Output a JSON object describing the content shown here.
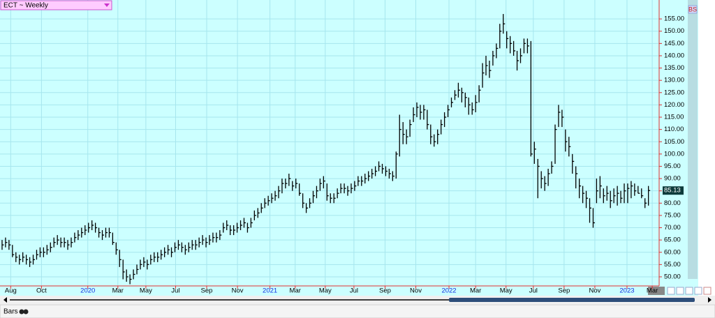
{
  "chart_data": {
    "type": "ohlc",
    "title": "ECT ~ Weekly",
    "color": "#000000",
    "grid": true,
    "high": [
      65,
      66,
      65,
      63,
      60,
      59,
      60,
      59,
      58,
      59,
      61,
      62,
      62,
      63,
      64,
      66,
      67,
      66,
      66,
      65,
      66,
      68,
      69,
      70,
      71,
      72,
      73,
      72,
      70,
      69,
      70,
      70,
      68,
      64,
      61,
      57,
      53,
      51,
      53,
      55,
      57,
      58,
      57,
      59,
      60,
      60,
      61,
      62,
      63,
      62,
      64,
      65,
      64,
      63,
      64,
      65,
      65,
      66,
      67,
      66,
      67,
      68,
      68,
      69,
      72,
      73,
      71,
      71,
      72,
      73,
      74,
      72,
      74,
      77,
      78,
      80,
      82,
      83,
      84,
      85,
      87,
      90,
      90,
      92,
      89,
      90,
      88,
      84,
      80,
      82,
      85,
      87,
      90,
      91,
      88,
      84,
      84,
      86,
      88,
      88,
      87,
      88,
      89,
      91,
      91,
      92,
      93,
      94,
      95,
      97,
      96,
      95,
      94,
      93,
      101,
      116,
      113,
      110,
      114,
      119,
      121,
      120,
      120,
      118,
      112,
      108,
      110,
      114,
      117,
      120,
      123,
      126,
      129,
      127,
      125,
      123,
      121,
      124,
      128,
      137,
      140,
      138,
      142,
      145,
      153,
      157,
      150,
      148,
      146,
      142,
      143,
      147,
      147,
      146,
      105,
      98,
      93,
      91,
      94,
      97,
      112,
      120,
      118,
      110,
      107,
      100,
      95,
      90,
      87,
      85,
      82,
      78,
      90,
      91,
      86,
      87,
      85,
      86,
      87,
      85,
      88,
      88,
      89,
      88,
      87,
      86,
      82,
      87
    ],
    "low": [
      61,
      62,
      61,
      58,
      56,
      55,
      56,
      55,
      54,
      55,
      57,
      58,
      58,
      59,
      60,
      62,
      63,
      62,
      62,
      61,
      62,
      64,
      65,
      66,
      67,
      68,
      69,
      68,
      66,
      65,
      66,
      66,
      63,
      59,
      54,
      49,
      48,
      47,
      49,
      51,
      53,
      54,
      53,
      55,
      56,
      56,
      57,
      58,
      59,
      58,
      60,
      61,
      60,
      59,
      60,
      61,
      61,
      62,
      63,
      62,
      63,
      64,
      64,
      65,
      68,
      69,
      67,
      67,
      68,
      69,
      70,
      68,
      70,
      73,
      74,
      76,
      78,
      79,
      80,
      81,
      82,
      84,
      86,
      87,
      85,
      86,
      83,
      78,
      76,
      78,
      80,
      82,
      85,
      86,
      81,
      80,
      80,
      82,
      84,
      84,
      83,
      84,
      85,
      87,
      87,
      88,
      89,
      90,
      91,
      93,
      92,
      91,
      90,
      89,
      90,
      99,
      104,
      104,
      107,
      113,
      115,
      114,
      114,
      110,
      104,
      103,
      104,
      108,
      111,
      115,
      119,
      122,
      123,
      121,
      119,
      116,
      116,
      117,
      121,
      127,
      132,
      131,
      136,
      139,
      143,
      149,
      143,
      141,
      140,
      134,
      137,
      141,
      141,
      99,
      96,
      82,
      86,
      85,
      87,
      92,
      96,
      111,
      111,
      101,
      99,
      92,
      86,
      82,
      80,
      78,
      72,
      70,
      80,
      82,
      80,
      81,
      78,
      80,
      79,
      80,
      80,
      80,
      82,
      83,
      84,
      82,
      78,
      79
    ],
    "close": [
      63,
      64,
      63,
      59,
      58,
      57,
      58,
      57,
      56,
      57,
      59,
      60,
      60,
      61,
      62,
      64,
      65,
      64,
      64,
      63,
      64,
      66,
      67,
      68,
      69,
      70,
      71,
      70,
      68,
      67,
      68,
      68,
      64,
      61,
      57,
      52,
      50,
      49,
      51,
      53,
      55,
      56,
      55,
      57,
      58,
      58,
      59,
      60,
      61,
      60,
      62,
      63,
      62,
      61,
      62,
      63,
      63,
      64,
      65,
      64,
      65,
      66,
      66,
      67,
      70,
      71,
      69,
      69,
      70,
      71,
      72,
      70,
      72,
      75,
      76,
      78,
      80,
      81,
      82,
      83,
      85,
      88,
      88,
      90,
      87,
      88,
      84,
      80,
      78,
      80,
      83,
      85,
      88,
      89,
      83,
      82,
      82,
      84,
      86,
      86,
      85,
      86,
      87,
      89,
      89,
      90,
      91,
      92,
      93,
      95,
      94,
      93,
      92,
      91,
      100,
      110,
      108,
      107,
      112,
      116,
      119,
      117,
      118,
      112,
      107,
      105,
      108,
      112,
      115,
      118,
      121,
      124,
      126,
      125,
      123,
      120,
      118,
      121,
      126,
      133,
      136,
      134,
      140,
      143,
      150,
      153,
      147,
      145,
      142,
      138,
      140,
      145,
      144,
      100,
      102,
      95,
      90,
      88,
      92,
      95,
      110,
      117,
      115,
      105,
      103,
      97,
      92,
      87,
      84,
      82,
      78,
      72,
      85,
      87,
      83,
      84,
      81,
      83,
      84,
      82,
      85,
      86,
      87,
      85,
      84,
      83,
      80,
      85.13
    ],
    "ylim": [
      46.3,
      162.7
    ],
    "yticks": [
      {
        "value": 50,
        "label": "50.00"
      },
      {
        "value": 55,
        "label": "55.00"
      },
      {
        "value": 60,
        "label": "60.00"
      },
      {
        "value": 65,
        "label": "65.00"
      },
      {
        "value": 70,
        "label": "70.00"
      },
      {
        "value": 75,
        "label": "75.00"
      },
      {
        "value": 80,
        "label": "80.00"
      },
      {
        "value": 85,
        "label": "85.00"
      },
      {
        "value": 90,
        "label": "90.00"
      },
      {
        "value": 95,
        "label": "95.00"
      },
      {
        "value": 100,
        "label": "100.00"
      },
      {
        "value": 105,
        "label": "105.00"
      },
      {
        "value": 110,
        "label": "110.00"
      },
      {
        "value": 115,
        "label": "115.00"
      },
      {
        "value": 120,
        "label": "120.00"
      },
      {
        "value": 125,
        "label": "125.00"
      },
      {
        "value": 130,
        "label": "130.00"
      },
      {
        "value": 135,
        "label": "135.00"
      },
      {
        "value": 140,
        "label": "140.00"
      },
      {
        "value": 145,
        "label": "145.00"
      },
      {
        "value": 150,
        "label": "150.00"
      },
      {
        "value": 155,
        "label": "155.00"
      }
    ],
    "xlim": [
      -0.6,
      190.1
    ],
    "xticks": [
      {
        "value": 2.5,
        "label": "Aug"
      },
      {
        "value": 11.4,
        "label": "Oct"
      },
      {
        "value": 24.8,
        "label": "2020"
      },
      {
        "value": 33.5,
        "label": "Mar"
      },
      {
        "value": 41.6,
        "label": "May"
      },
      {
        "value": 50.2,
        "label": "Jul"
      },
      {
        "value": 59.2,
        "label": "Sep"
      },
      {
        "value": 68.1,
        "label": "Nov"
      },
      {
        "value": 77.5,
        "label": "2021"
      },
      {
        "value": 84.8,
        "label": "Mar"
      },
      {
        "value": 93.5,
        "label": "May"
      },
      {
        "value": 101.8,
        "label": "Jul"
      },
      {
        "value": 110.8,
        "label": "Sep"
      },
      {
        "value": 119.7,
        "label": "Nov"
      },
      {
        "value": 129.3,
        "label": "2022"
      },
      {
        "value": 137,
        "label": "Mar"
      },
      {
        "value": 145.8,
        "label": "May"
      },
      {
        "value": 153.7,
        "label": "Jul"
      },
      {
        "value": 162.6,
        "label": "Sep"
      },
      {
        "value": 171.5,
        "label": "Nov"
      },
      {
        "value": 180.8,
        "label": "2023"
      },
      {
        "value": 188.1,
        "label": "Mar"
      }
    ]
  },
  "toolbar": {
    "badge": "BS",
    "mode": "Bars"
  }
}
